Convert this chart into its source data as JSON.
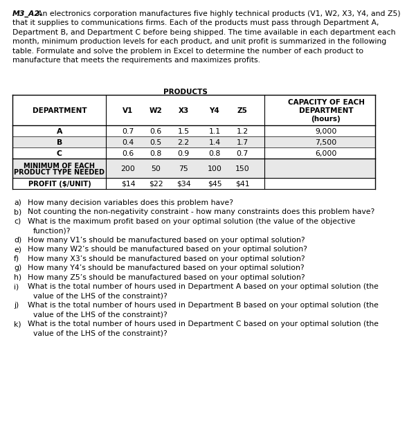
{
  "title_bold": "M3_A2.",
  "title_lines": [
    "An electronics corporation manufactures five highly technical products (V1, W2, X3, Y4, and Z5)",
    "that it supplies to communications firms. Each of the products must pass through Department A,",
    "Department B, and Department C before being shipped. The time available in each department each",
    "month, minimum production levels for each product, and unit profit is summarized in the following",
    "table. Formulate and solve the problem in Excel to determine the number of each product to",
    "manufacture that meets the requirements and maximizes profits."
  ],
  "products_header": "PRODUCTS",
  "col_headers": [
    "DEPARTMENT",
    "V1",
    "W2",
    "X3",
    "Y4",
    "Z5",
    "CAPACITY OF EACH\nDEPARTMENT\n(hours)"
  ],
  "dept_rows": [
    {
      "dept": "A",
      "values": [
        "0.7",
        "0.6",
        "1.5",
        "1.1",
        "1.2"
      ],
      "capacity": "9,000"
    },
    {
      "dept": "B",
      "values": [
        "0.4",
        "0.5",
        "2.2",
        "1.4",
        "1.7"
      ],
      "capacity": "7,500"
    },
    {
      "dept": "C",
      "values": [
        "0.6",
        "0.8",
        "0.9",
        "0.8",
        "0.7"
      ],
      "capacity": "6,000"
    }
  ],
  "min_row_label_lines": [
    "MINIMUM OF EACH",
    "PRODUCT TYPE NEEDED"
  ],
  "min_row_values": [
    "200",
    "50",
    "75",
    "100",
    "150"
  ],
  "profit_row_label": "PROFIT ($/UNIT)",
  "profit_row_values": [
    "$14",
    "$22",
    "$34",
    "$45",
    "$41"
  ],
  "questions": [
    {
      "label": "a)",
      "lines": [
        "How many decision variables does this problem have?"
      ]
    },
    {
      "label": "b)",
      "lines": [
        "Not counting the non-negativity constraint - how many constraints does this problem have?"
      ]
    },
    {
      "label": "c)",
      "lines": [
        "What is the maximum profit based on your optimal solution (the value of the objective",
        "function)?"
      ]
    },
    {
      "label": "d)",
      "lines": [
        "How many V1’s should be manufactured based on your optimal solution?"
      ]
    },
    {
      "label": "e)",
      "lines": [
        "How many W2’s should be manufactured based on your optimal solution?"
      ]
    },
    {
      "label": "f)",
      "lines": [
        "How many X3’s should be manufactured based on your optimal solution?"
      ]
    },
    {
      "label": "g)",
      "lines": [
        "How many Y4’s should be manufactured based on your optimal solution?"
      ]
    },
    {
      "label": "h)",
      "lines": [
        "How many Z5’s should be manufactured based on your optimal solution?"
      ]
    },
    {
      "label": "i)",
      "lines": [
        "What is the total number of hours used in Department A based on your optimal solution (the",
        "value of the LHS of the constraint)?"
      ]
    },
    {
      "label": "j)",
      "lines": [
        "What is the total number of hours used in Department B based on your optimal solution (the",
        "value of the LHS of the constraint)?"
      ]
    },
    {
      "label": "k)",
      "lines": [
        "What is the total number of hours used in Department C based on your optimal solution (the",
        "value of the LHS of the constraint)?"
      ]
    }
  ],
  "bg_color": "#ffffff",
  "text_color": "#000000",
  "shaded_color": "#e8e8e8",
  "line_color": "#000000"
}
